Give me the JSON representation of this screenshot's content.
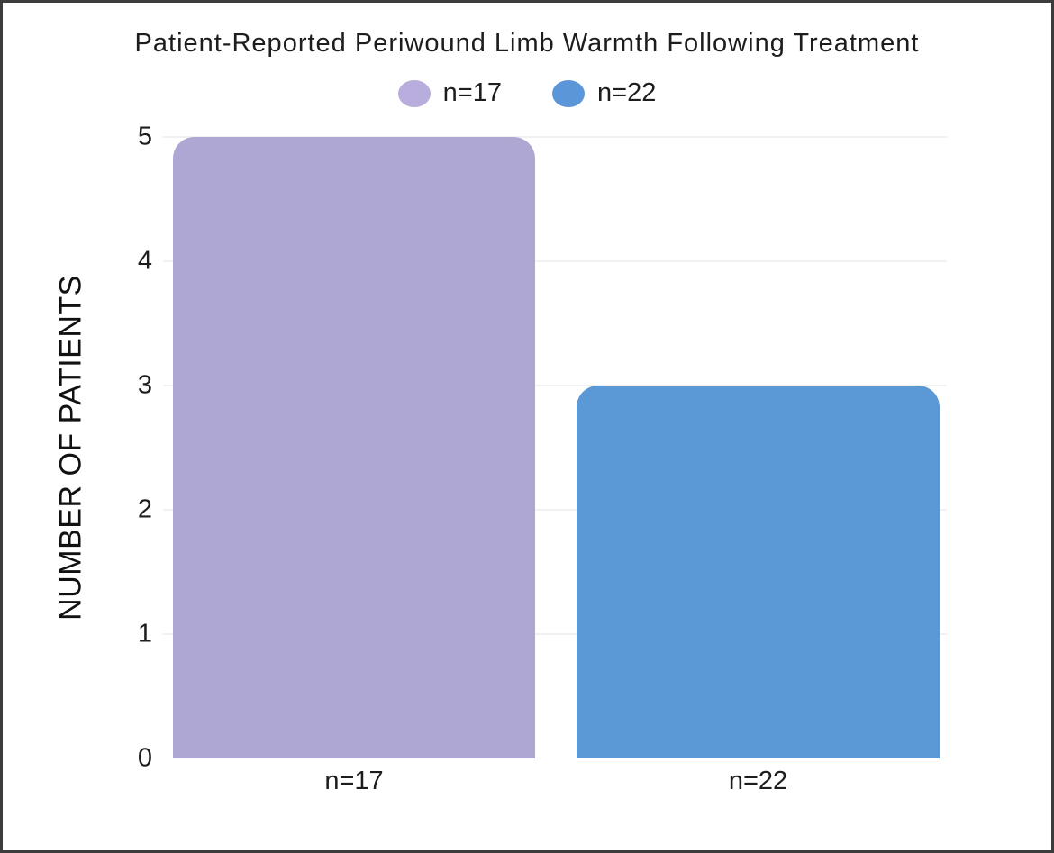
{
  "chart_data": {
    "type": "bar",
    "title": "Patient-Reported Periwound Limb Warmth Following Treatment",
    "xlabel": "",
    "ylabel": "NUMBER OF PATIENTS",
    "categories": [
      "n=17",
      "n=22"
    ],
    "values": [
      5,
      3
    ],
    "series": [
      {
        "name": "n=17",
        "value": 5,
        "color": "#aea6d3",
        "legend_color": "#b8addd"
      },
      {
        "name": "n=22",
        "value": 3,
        "color": "#5b98d6",
        "legend_color": "#5b96d8"
      }
    ],
    "yticks": [
      0,
      1,
      2,
      3,
      4,
      5
    ],
    "ylim": [
      0,
      5
    ],
    "grid": true,
    "legend_position": "top-center",
    "colors": {
      "background": "#ffffff",
      "frame_border": "#3c3c3c",
      "text": "#1d1d1d",
      "gridline": "#f1f1f1",
      "bar_purple": "#aea6d3",
      "bar_blue": "#5b98d6"
    }
  }
}
